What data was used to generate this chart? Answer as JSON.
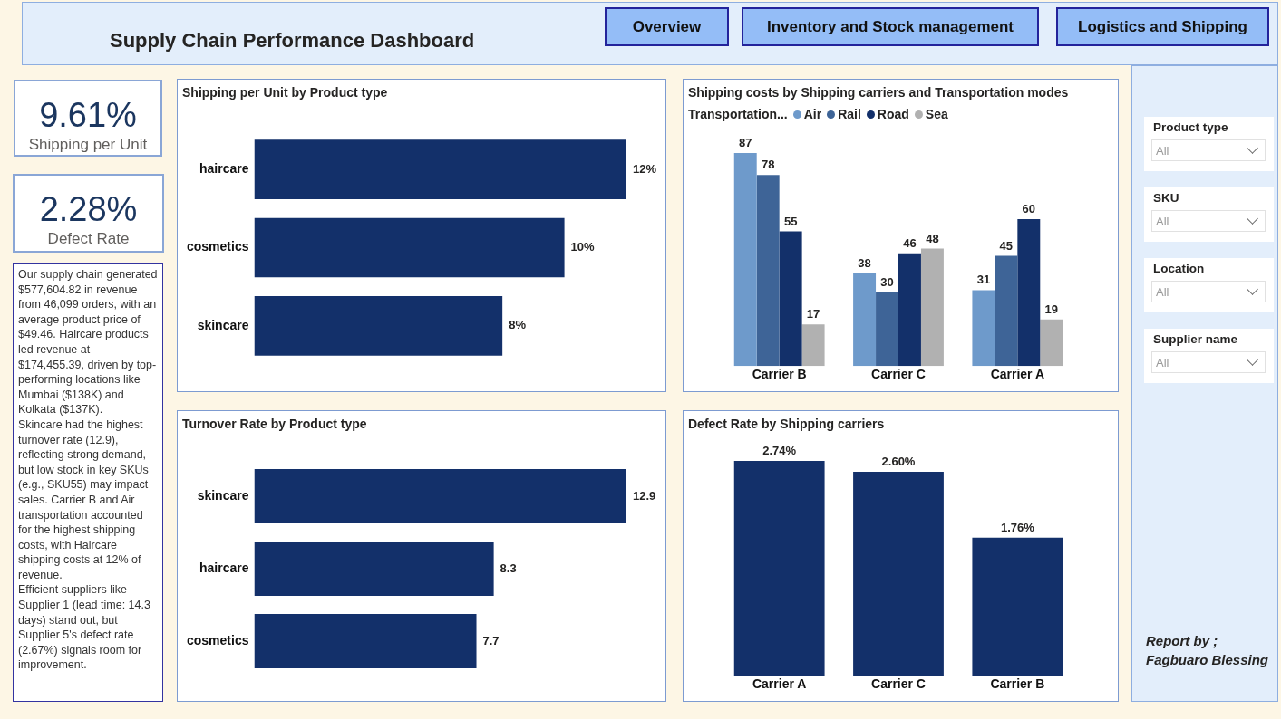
{
  "chart_data": [
    {
      "type": "other",
      "title": "Supply Chain Performance Dashboard",
      "annotations": [
        "Overview",
        "Inventory and Stock management",
        "Logistics and Shipping"
      ]
    },
    {
      "type": "other",
      "annotations": [
        "9.61%",
        "Shipping per Unit"
      ]
    },
    {
      "type": "other",
      "annotations": [
        "2.28%",
        "Defect Rate"
      ]
    },
    {
      "type": "other",
      "annotations": [
        "Our supply chain generated $577,604.82 in revenue from 46,099 orders, with an average product price of $49.46. Haircare products led revenue at $174,455.39, driven by top-performing locations like Mumbai ($138K) and Kolkata ($137K).",
        "Skincare had the highest turnover rate (12.9), reflecting strong demand, but low stock in key SKUs (e.g., SKU55) may impact sales. Carrier B and Air transportation accounted for the highest shipping costs, with Haircare shipping costs at 12% of revenue.",
        "Efficient suppliers like Supplier 1 (lead time: 14.3 days) stand out, but Supplier 5's defect rate (2.67%) signals room for improvement."
      ]
    },
    {
      "type": "bar",
      "orientation": "horizontal",
      "title": "Shipping per Unit by Product type",
      "categories": [
        "haircare",
        "cosmetics",
        "skincare"
      ],
      "values": [
        12,
        10,
        8
      ],
      "value_labels": [
        "12%",
        "10%",
        "8%"
      ],
      "color": "#13306a"
    },
    {
      "type": "bar",
      "title": "Shipping costs by Shipping carriers and Transportation modes",
      "legend_title": "Transportation...",
      "legend": "top left",
      "categories": [
        "Carrier B",
        "Carrier C",
        "Carrier A"
      ],
      "series": [
        {
          "name": "Air",
          "color": "#6e9acb",
          "values": [
            87,
            38,
            31
          ]
        },
        {
          "name": "Rail",
          "color": "#3e6497",
          "values": [
            78,
            30,
            45
          ]
        },
        {
          "name": "Road",
          "color": "#13306a",
          "values": [
            55,
            46,
            60
          ]
        },
        {
          "name": "Sea",
          "color": "#b1b1b1",
          "values": [
            17,
            48,
            19
          ]
        }
      ],
      "data_labels": true
    },
    {
      "type": "bar",
      "orientation": "horizontal",
      "title": "Turnover Rate by Product type",
      "categories": [
        "skincare",
        "haircare",
        "cosmetics"
      ],
      "values": [
        12.9,
        8.3,
        7.7
      ],
      "color": "#13306a",
      "data_labels": true
    },
    {
      "type": "bar",
      "title": "Defect Rate by Shipping carriers",
      "categories": [
        "Carrier A",
        "Carrier C",
        "Carrier B"
      ],
      "values": [
        2.74,
        2.6,
        1.76
      ],
      "value_labels": [
        "2.74%",
        "2.60%",
        "1.76%"
      ],
      "color": "#13306a"
    },
    {
      "type": "other",
      "annotations": [
        "Product type",
        "All",
        "SKU",
        "All",
        "Location",
        "All",
        "Supplier name",
        "All"
      ]
    },
    {
      "type": "other",
      "annotations": [
        "Report by ;",
        "Fagbuaro Blessing"
      ]
    }
  ]
}
